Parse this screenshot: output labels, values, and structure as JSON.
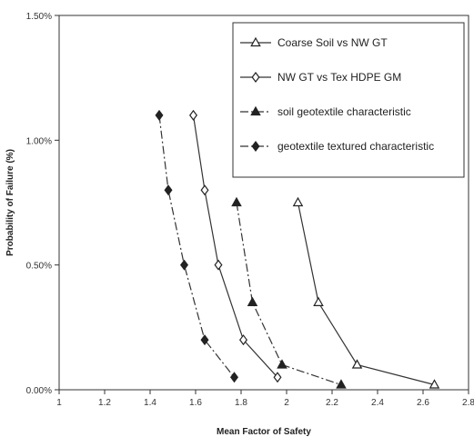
{
  "chart_data": {
    "type": "line",
    "xlabel": "Mean Factor of Safety",
    "ylabel": "Probability of Failure (%)",
    "xlim": [
      1,
      2.8
    ],
    "ylim": [
      0,
      1.5
    ],
    "x_ticks": [
      1,
      1.2,
      1.4,
      1.6,
      1.8,
      2,
      2.2,
      2.4,
      2.6,
      2.8
    ],
    "x_tick_labels": [
      "1",
      "1.2",
      "1.4",
      "1.6",
      "1.8",
      "2",
      "2.2",
      "2.4",
      "2.6",
      "2.8"
    ],
    "y_ticks": [
      0,
      0.5,
      1.0,
      1.5
    ],
    "y_tick_labels": [
      "0.00%",
      "0.50%",
      "1.00%",
      "1.50%"
    ],
    "grid": false,
    "legend_position": "top-right",
    "series": [
      {
        "name": "Coarse Soil vs NW GT",
        "marker": "triangle-open",
        "line": "solid",
        "points": [
          [
            2.05,
            0.75
          ],
          [
            2.14,
            0.35
          ],
          [
            2.31,
            0.1
          ],
          [
            2.65,
            0.02
          ]
        ]
      },
      {
        "name": "NW GT vs Tex HDPE GM",
        "marker": "diamond-open",
        "line": "solid",
        "points": [
          [
            1.59,
            1.1
          ],
          [
            1.64,
            0.8
          ],
          [
            1.7,
            0.5
          ],
          [
            1.81,
            0.2
          ],
          [
            1.96,
            0.05
          ]
        ]
      },
      {
        "name": "soil geotextile characteristic",
        "marker": "triangle-filled",
        "line": "dashdot",
        "points": [
          [
            1.78,
            0.75
          ],
          [
            1.85,
            0.35
          ],
          [
            1.98,
            0.1
          ],
          [
            2.24,
            0.02
          ]
        ]
      },
      {
        "name": "geotextile textured characteristic",
        "marker": "diamond-filled",
        "line": "dashdot",
        "points": [
          [
            1.44,
            1.1
          ],
          [
            1.48,
            0.8
          ],
          [
            1.55,
            0.5
          ],
          [
            1.64,
            0.2
          ],
          [
            1.77,
            0.05
          ]
        ]
      }
    ]
  }
}
